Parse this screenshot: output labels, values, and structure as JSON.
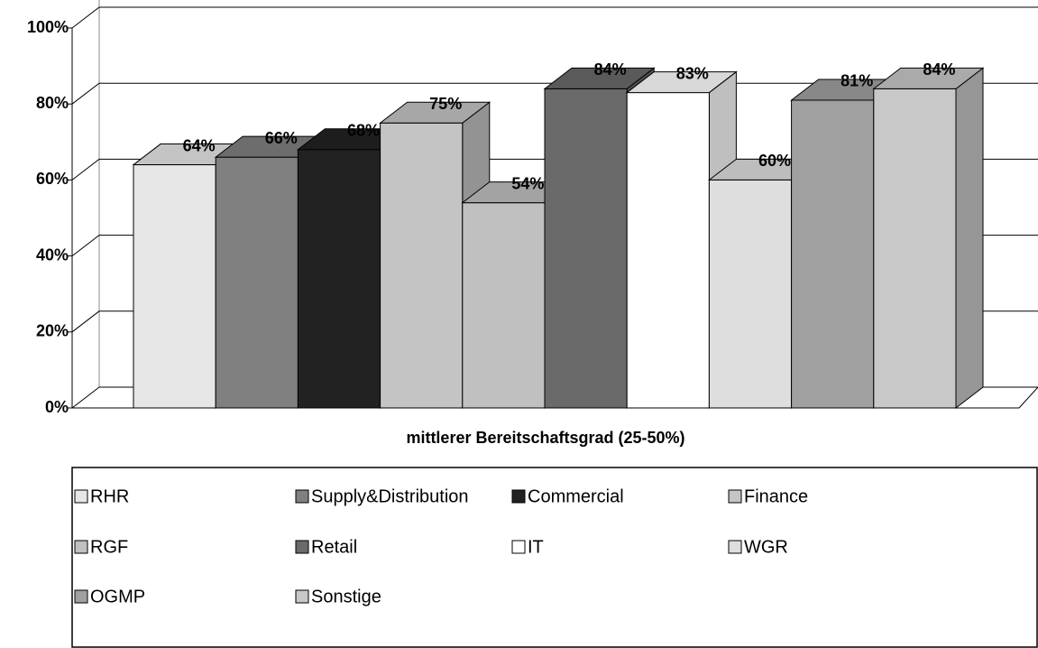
{
  "chart_data": {
    "type": "bar3d",
    "categories": [
      "mittlerer Bereitschaftsgrad (25-50%)"
    ],
    "ylim": [
      0,
      100
    ],
    "yticks": [
      {
        "value": 0,
        "label": "0%"
      },
      {
        "value": 20,
        "label": "20%"
      },
      {
        "value": 40,
        "label": "40%"
      },
      {
        "value": 60,
        "label": "60%"
      },
      {
        "value": 80,
        "label": "80%"
      },
      {
        "value": 100,
        "label": "100%"
      }
    ],
    "grid": true,
    "legend": "bottom",
    "series": [
      {
        "name": "RHR",
        "color": "#e6e6e6",
        "values": [
          64
        ],
        "value_labels": [
          "64%"
        ]
      },
      {
        "name": "Supply&Distribution",
        "color": "#808080",
        "values": [
          66
        ],
        "value_labels": [
          "66%"
        ]
      },
      {
        "name": "Commercial",
        "color": "#222222",
        "values": [
          68
        ],
        "value_labels": [
          "68%"
        ]
      },
      {
        "name": "Finance",
        "color": "#c4c4c4",
        "values": [
          75
        ],
        "value_labels": [
          "75%"
        ]
      },
      {
        "name": "RGF",
        "color": "#c0c0c0",
        "values": [
          54
        ],
        "value_labels": [
          "54%"
        ]
      },
      {
        "name": "Retail",
        "color": "#6a6a6a",
        "values": [
          84
        ],
        "value_labels": [
          "84%"
        ]
      },
      {
        "name": "IT",
        "color": "#ffffff",
        "values": [
          83
        ],
        "value_labels": [
          "83%"
        ]
      },
      {
        "name": "WGR",
        "color": "#dedede",
        "values": [
          60
        ],
        "value_labels": [
          "60%"
        ]
      },
      {
        "name": "OGMP",
        "color": "#a0a0a0",
        "values": [
          81
        ],
        "value_labels": [
          "81%"
        ]
      },
      {
        "name": "Sonstige",
        "color": "#c8c8c8",
        "values": [
          84
        ],
        "value_labels": [
          "84%"
        ]
      }
    ]
  }
}
